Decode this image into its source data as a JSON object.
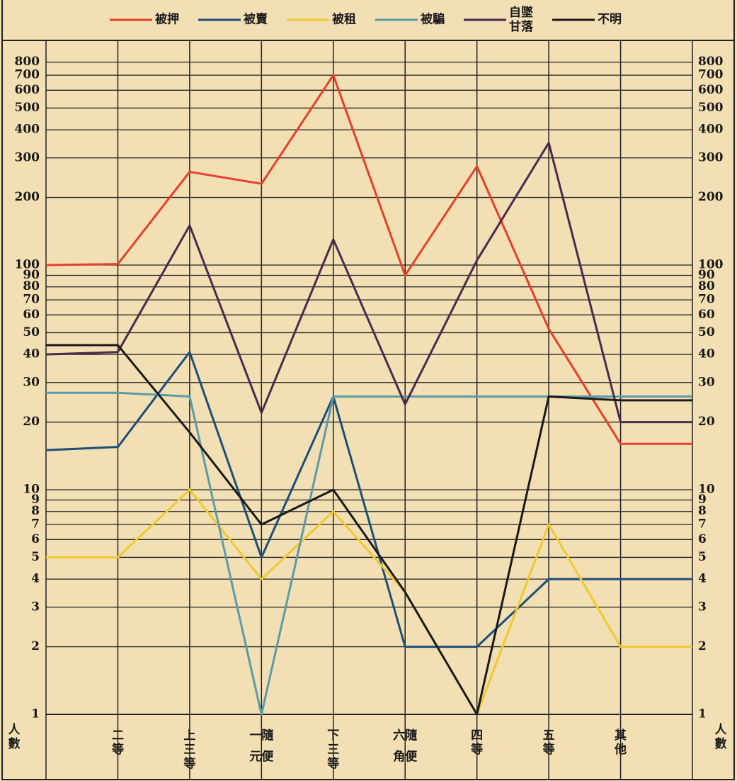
{
  "chart_data": {
    "type": "line",
    "categories": [
      null,
      "二等",
      "上三等",
      "一隨元便",
      "下三等",
      "六隨角便",
      "四等",
      "五等",
      "其他",
      null
    ],
    "series": [
      {
        "name": "被押",
        "color": "#e5402b",
        "values": [
          100,
          101,
          260,
          230,
          700,
          90,
          275,
          52,
          16,
          16
        ]
      },
      {
        "name": "被賣",
        "color": "#1e4d78",
        "values": [
          15,
          15.5,
          41,
          5,
          26,
          2,
          2,
          4,
          4,
          4
        ]
      },
      {
        "name": "被租",
        "color": "#f0c930",
        "values": [
          5,
          5,
          10,
          4,
          8,
          3.5,
          1,
          7,
          2,
          2
        ]
      },
      {
        "name": "被騙",
        "color": "#5b9ca6",
        "values": [
          27,
          27,
          26,
          1,
          26,
          26,
          26,
          26,
          26,
          26
        ]
      },
      {
        "name": "自墜甘落",
        "color": "#4b2a4c",
        "values": [
          40,
          41,
          150,
          22,
          130,
          24,
          105,
          350,
          20,
          20
        ]
      },
      {
        "name": "不明",
        "color": "#1a1a1a",
        "values": [
          44,
          44,
          18,
          7,
          10,
          3.5,
          1,
          26,
          25,
          25
        ]
      }
    ],
    "y_label": "人數",
    "log_y": true,
    "ylim": [
      1,
      1000
    ],
    "yticks": [
      1,
      2,
      3,
      4,
      5,
      6,
      7,
      8,
      9,
      10,
      20,
      30,
      40,
      50,
      60,
      70,
      80,
      90,
      100,
      200,
      300,
      400,
      500,
      600,
      700,
      800
    ],
    "grid": true
  }
}
